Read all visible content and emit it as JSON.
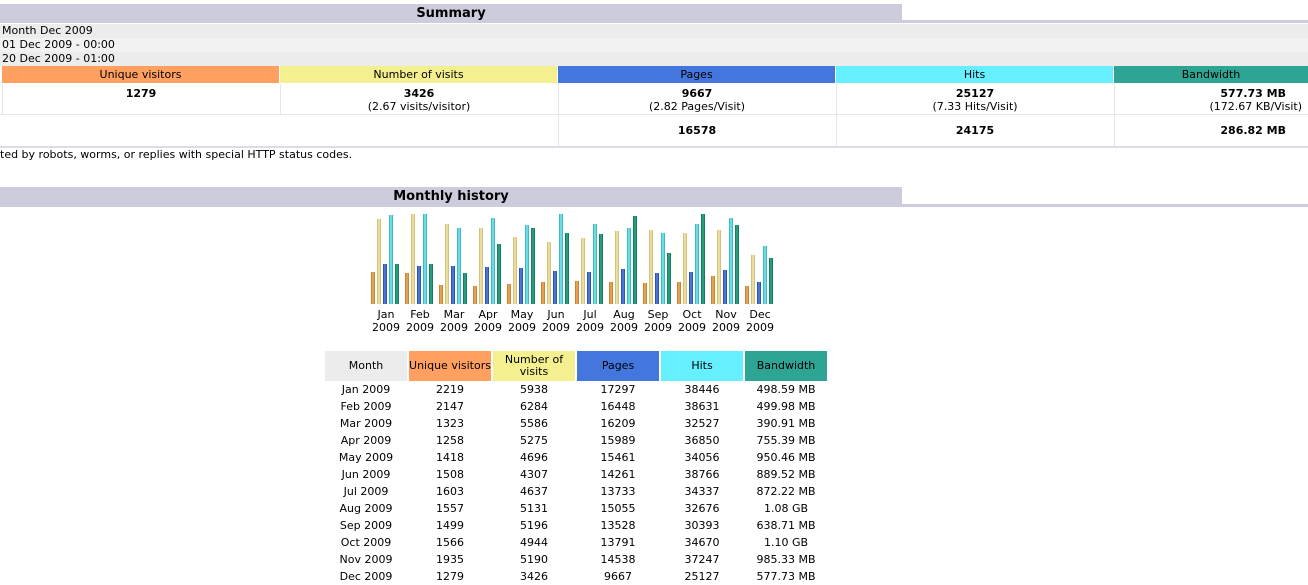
{
  "summary": {
    "title": "Summary",
    "reported_period": "Month Dec 2009",
    "first_visit": "01 Dec 2009 - 00:00",
    "last_visit": "20 Dec 2009 - 01:00",
    "headers": {
      "unique_visitors": "Unique visitors",
      "visits": "Number of visits",
      "pages": "Pages",
      "hits": "Hits",
      "bandwidth": "Bandwidth"
    },
    "viewed": {
      "unique_visitors": "1279",
      "visits": "3426",
      "visits_sub": "(2.67 visits/visitor)",
      "pages": "9667",
      "pages_sub": "(2.82 Pages/Visit)",
      "hits": "25127",
      "hits_sub": "(7.33 Hits/Visit)",
      "bandwidth": "577.73 MB",
      "bandwidth_sub": "(172.67 KB/Visit)"
    },
    "not_viewed": {
      "pages": "16578",
      "hits": "24175",
      "bandwidth": "286.82 MB"
    },
    "note": "ted by robots, worms, or replies with special HTTP status codes."
  },
  "history": {
    "title": "Monthly history",
    "columns": {
      "month": "Month",
      "unique_visitors": "Unique visitors",
      "visits": "Number of visits",
      "pages": "Pages",
      "hits": "Hits",
      "bandwidth": "Bandwidth"
    },
    "colors": {
      "unique_visitors": "#ffa060",
      "visits": "#f4f090",
      "pages": "#4477dd",
      "hits": "#66f0ff",
      "bandwidth": "#2ea495"
    },
    "rows": [
      {
        "month": "Jan 2009",
        "m": "Jan",
        "y": "2009",
        "unique": "2219",
        "visits": "5938",
        "pages": "17297",
        "hits": "38446",
        "bandwidth": "498.59 MB",
        "bw_mb": 498.59
      },
      {
        "month": "Feb 2009",
        "m": "Feb",
        "y": "2009",
        "unique": "2147",
        "visits": "6284",
        "pages": "16448",
        "hits": "38631",
        "bandwidth": "499.98 MB",
        "bw_mb": 499.98
      },
      {
        "month": "Mar 2009",
        "m": "Mar",
        "y": "2009",
        "unique": "1323",
        "visits": "5586",
        "pages": "16209",
        "hits": "32527",
        "bandwidth": "390.91 MB",
        "bw_mb": 390.91
      },
      {
        "month": "Apr 2009",
        "m": "Apr",
        "y": "2009",
        "unique": "1258",
        "visits": "5275",
        "pages": "15989",
        "hits": "36850",
        "bandwidth": "755.39 MB",
        "bw_mb": 755.39
      },
      {
        "month": "May 2009",
        "m": "May",
        "y": "2009",
        "unique": "1418",
        "visits": "4696",
        "pages": "15461",
        "hits": "34056",
        "bandwidth": "950.46 MB",
        "bw_mb": 950.46
      },
      {
        "month": "Jun 2009",
        "m": "Jun",
        "y": "2009",
        "unique": "1508",
        "visits": "4307",
        "pages": "14261",
        "hits": "38766",
        "bandwidth": "889.52 MB",
        "bw_mb": 889.52
      },
      {
        "month": "Jul 2009",
        "m": "Jul",
        "y": "2009",
        "unique": "1603",
        "visits": "4637",
        "pages": "13733",
        "hits": "34337",
        "bandwidth": "872.22 MB",
        "bw_mb": 872.22
      },
      {
        "month": "Aug 2009",
        "m": "Aug",
        "y": "2009",
        "unique": "1557",
        "visits": "5131",
        "pages": "15055",
        "hits": "32676",
        "bandwidth": "1.08 GB",
        "bw_mb": 1105.92
      },
      {
        "month": "Sep 2009",
        "m": "Sep",
        "y": "2009",
        "unique": "1499",
        "visits": "5196",
        "pages": "13528",
        "hits": "30393",
        "bandwidth": "638.71 MB",
        "bw_mb": 638.71
      },
      {
        "month": "Oct 2009",
        "m": "Oct",
        "y": "2009",
        "unique": "1566",
        "visits": "4944",
        "pages": "13791",
        "hits": "34670",
        "bandwidth": "1.10 GB",
        "bw_mb": 1126.4
      },
      {
        "month": "Nov 2009",
        "m": "Nov",
        "y": "2009",
        "unique": "1935",
        "visits": "5190",
        "pages": "14538",
        "hits": "37247",
        "bandwidth": "985.33 MB",
        "bw_mb": 985.33
      },
      {
        "month": "Dec 2009",
        "m": "Dec",
        "y": "2009",
        "unique": "1279",
        "visits": "3426",
        "pages": "9667",
        "hits": "25127",
        "bandwidth": "577.73 MB",
        "bw_mb": 577.73
      }
    ]
  }
}
